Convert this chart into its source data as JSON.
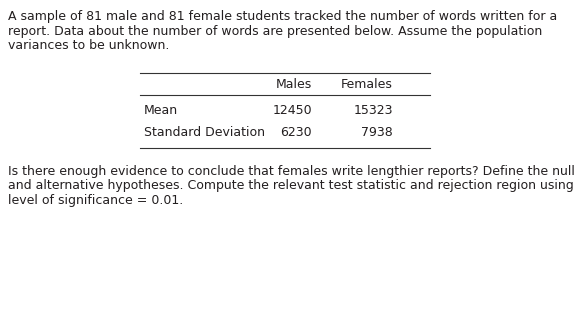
{
  "para1_line1": "A sample of 81 male and 81 female students tracked the number of words written for a",
  "para1_line2": "report. Data about the number of words are presented below. Assume the population",
  "para1_line3": "variances to be unknown.",
  "col_headers": [
    "Males",
    "Females"
  ],
  "row_labels": [
    "Mean",
    "Standard Deviation"
  ],
  "values": [
    [
      12450,
      15323
    ],
    [
      6230,
      7938
    ]
  ],
  "para2_line1": "Is there enough evidence to conclude that females write lengthier reports? Define the null",
  "para2_line2": "and alternative hypotheses. Compute the relevant test statistic and rejection region using a",
  "para2_line3": "level of significance = 0.01.",
  "bg_color": "#ffffff",
  "text_color": "#231f20",
  "font_size": 9.0
}
